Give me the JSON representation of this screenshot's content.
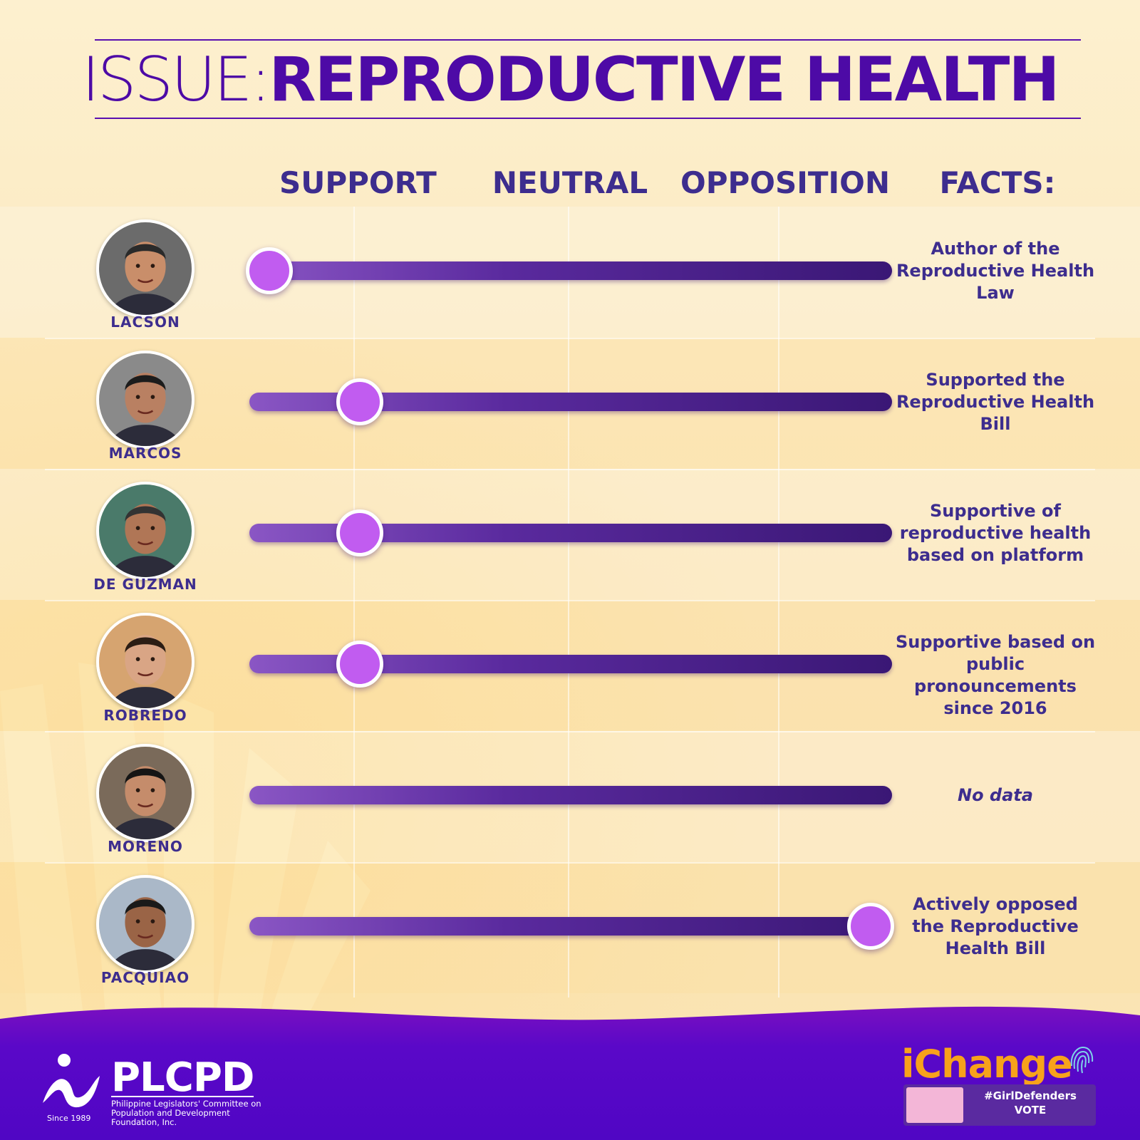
{
  "title": {
    "prefix": "ISSUE:",
    "main": "REPRODUCTIVE HEALTH"
  },
  "columns": {
    "support": "SUPPORT",
    "neutral": "NEUTRAL",
    "opposition": "OPPOSITION",
    "facts": "FACTS:"
  },
  "colors": {
    "accent": "#4d0aa6",
    "knob": "#c15cf0",
    "footer": "#5a08c8",
    "background": "#fbe9c0"
  },
  "candidates": [
    {
      "name": "LACSON",
      "position": 0.0,
      "fact": "Author of the Reproductive Health Law",
      "fact_lines": [
        "Author of the",
        "Reproductive Health",
        "Law"
      ],
      "italic": false
    },
    {
      "name": "MARCOS",
      "position": 0.15,
      "fact": "Supported the Reproductive Health Bill",
      "fact_lines": [
        "Supported the",
        "Reproductive Health",
        "Bill"
      ],
      "italic": false
    },
    {
      "name": "DE GUZMAN",
      "position": 0.15,
      "fact": "Supportive of reproductive health based on platform",
      "fact_lines": [
        "Supportive of",
        "reproductive health",
        "based on platform"
      ],
      "italic": false
    },
    {
      "name": "ROBREDO",
      "position": 0.15,
      "fact": "Supportive based on public pronouncements since 2016",
      "fact_lines": [
        "Supportive based on",
        "public pronouncements",
        "since 2016"
      ],
      "italic": false
    },
    {
      "name": "MORENO",
      "position": null,
      "fact": "No data",
      "fact_lines": [
        "No data"
      ],
      "italic": true
    },
    {
      "name": "PACQUIAO",
      "position": 1.0,
      "fact": "Actively opposed the Reproductive Health Bill",
      "fact_lines": [
        "Actively opposed",
        "the Reproductive",
        "Health Bill"
      ],
      "italic": false
    }
  ],
  "footer": {
    "plcpd": "PLCPD",
    "plcpd_sub": "Philippine Legislators' Committee on Population and Development Foundation, Inc.",
    "since": "Since 1989",
    "ichange": "iChange",
    "girldefenders": "#GirlDefenders",
    "vote": "VOTE"
  }
}
